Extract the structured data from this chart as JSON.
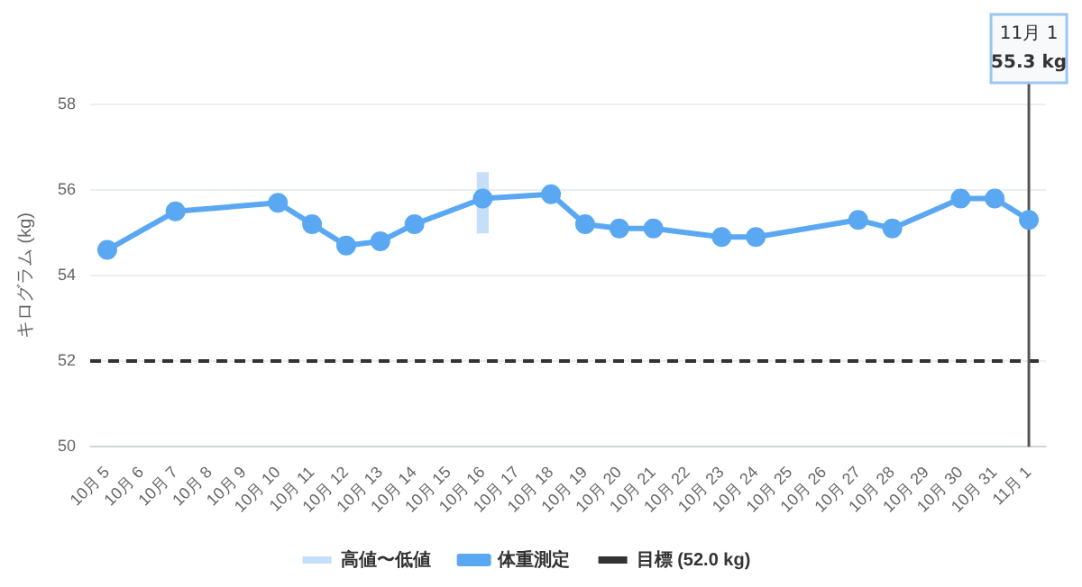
{
  "chart_data": {
    "type": "line",
    "ylabel": "キログラム (kg)",
    "categories": [
      "10月 5",
      "10月 6",
      "10月 7",
      "10月 8",
      "10月 9",
      "10月 10",
      "10月 11",
      "10月 12",
      "10月 13",
      "10月 14",
      "10月 15",
      "10月 16",
      "10月 17",
      "10月 18",
      "10月 19",
      "10月 20",
      "10月 21",
      "10月 22",
      "10月 23",
      "10月 24",
      "10月 25",
      "10月 26",
      "10月 27",
      "10月 28",
      "10月 29",
      "10月 30",
      "10月 31",
      "11月 1"
    ],
    "series": [
      {
        "name": "高値〜低値",
        "type": "bar",
        "color": "#c6dff8",
        "base": [
          null,
          null,
          null,
          null,
          null,
          null,
          null,
          null,
          null,
          null,
          null,
          55.0,
          null,
          null,
          null,
          null,
          null,
          null,
          null,
          null,
          null,
          null,
          null,
          null,
          null,
          null,
          null,
          null
        ],
        "values": [
          null,
          null,
          null,
          null,
          null,
          null,
          null,
          null,
          null,
          null,
          null,
          1.4,
          null,
          null,
          null,
          null,
          null,
          null,
          null,
          null,
          null,
          null,
          null,
          null,
          null,
          null,
          null,
          null
        ]
      },
      {
        "name": "体重測定",
        "color": "#5ba8f2",
        "values": [
          54.6,
          null,
          55.5,
          null,
          null,
          55.7,
          55.2,
          54.7,
          54.8,
          55.2,
          null,
          55.8,
          null,
          55.9,
          55.2,
          55.1,
          55.1,
          null,
          54.9,
          54.9,
          null,
          null,
          55.3,
          55.1,
          null,
          55.8,
          55.8,
          55.3
        ]
      }
    ],
    "ref_lines": [
      {
        "axis": "y",
        "value": 52,
        "label": "目標 (52.0 kg)",
        "color": "#333333",
        "line_style": "dashed"
      },
      {
        "axis": "x",
        "value": "11月 1",
        "color": "#555555",
        "line_style": "solid"
      }
    ],
    "annotations": [
      "11月 1\n55.3 kg"
    ],
    "ylim": [
      50,
      58
    ],
    "yticks": [
      50,
      52,
      54,
      56,
      58
    ],
    "grid": "y",
    "legend": "bottom",
    "marker": "circle",
    "line_style": "solid"
  }
}
